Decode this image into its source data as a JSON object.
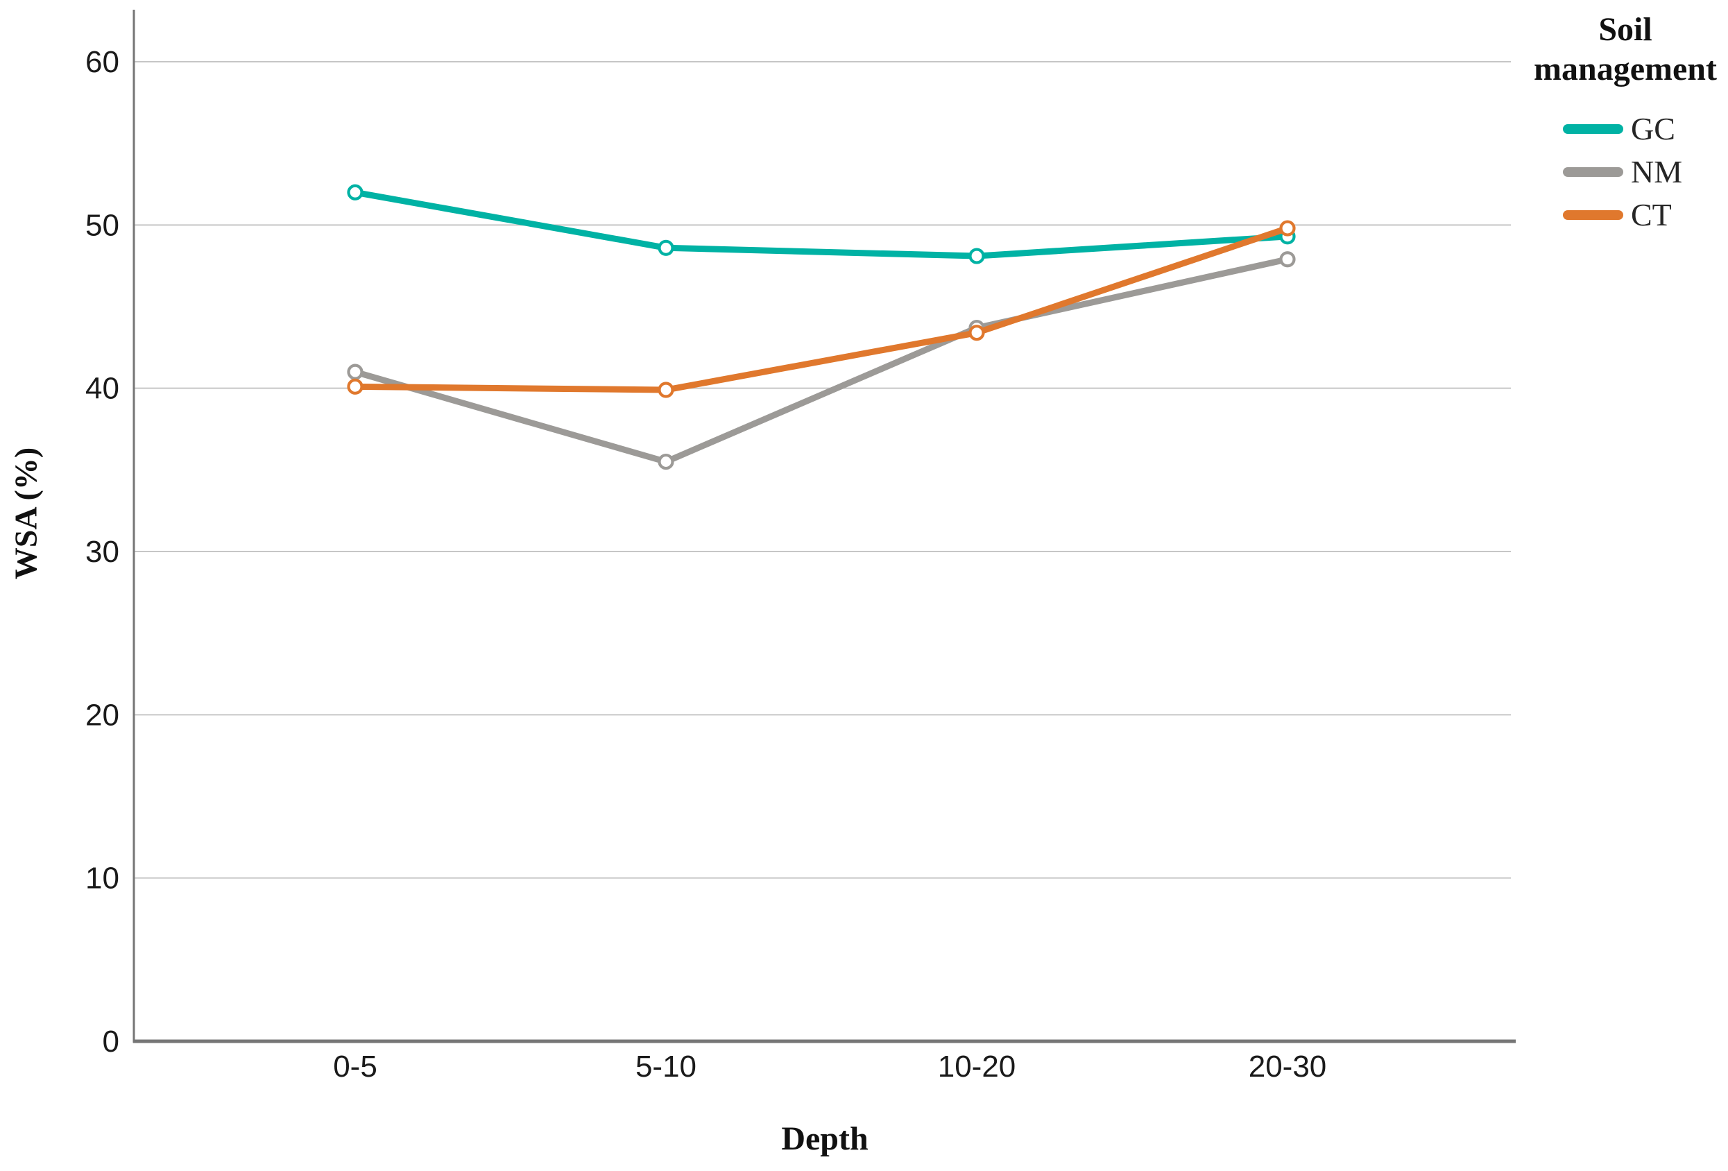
{
  "chart_data": {
    "type": "line",
    "xlabel": "Depth",
    "ylabel": "WSA (%)",
    "categories": [
      "0-5",
      "5-10",
      "10-20",
      "20-30"
    ],
    "series": [
      {
        "name": "GC",
        "color": "#00b2a4",
        "values": [
          52.0,
          48.6,
          48.1,
          49.3
        ]
      },
      {
        "name": "NM",
        "color": "#9c9a97",
        "values": [
          41.0,
          35.5,
          43.7,
          47.9
        ]
      },
      {
        "name": "CT",
        "color": "#e0782d",
        "values": [
          40.1,
          39.9,
          43.4,
          49.8
        ]
      }
    ],
    "ylim": [
      0,
      60
    ],
    "y_ticks": [
      0,
      10,
      20,
      30,
      40,
      50,
      60
    ],
    "grid": true,
    "legend_title": "Soil management",
    "legend_position": "top-right",
    "marker": "open-circle",
    "colors": {
      "grid": "#c6c6c6",
      "axis": "#767676",
      "tick_text": "#1a1a1a",
      "background": "#ffffff"
    }
  }
}
